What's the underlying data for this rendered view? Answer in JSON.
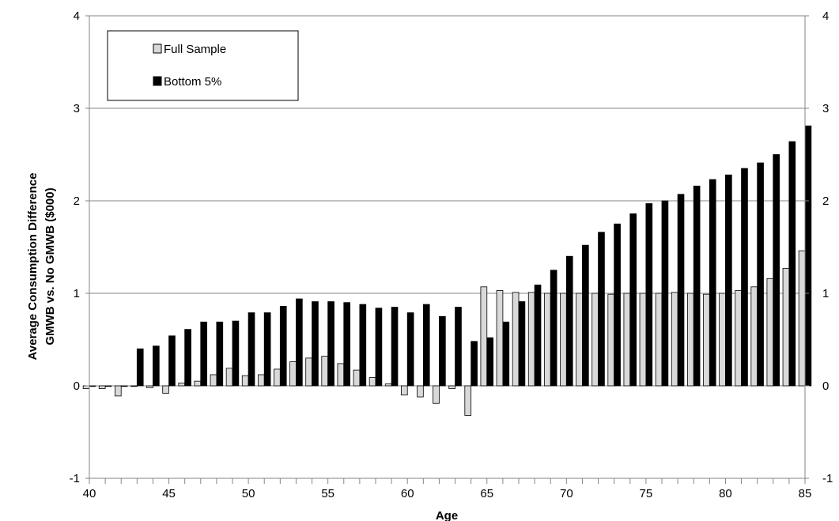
{
  "chart_data": {
    "type": "bar",
    "title": "",
    "xlabel": "Age",
    "ylabel_lines": [
      "Average Consumption  Difference",
      "GMWB vs. No GMWB  ($000)"
    ],
    "ylim": [
      -1,
      4
    ],
    "yticks": [
      -1,
      0,
      1,
      2,
      3,
      4
    ],
    "xlim": [
      40,
      85
    ],
    "xticks": [
      40,
      45,
      50,
      55,
      60,
      65,
      70,
      75,
      80,
      85
    ],
    "categories": [
      40,
      41,
      42,
      43,
      44,
      45,
      46,
      47,
      48,
      49,
      50,
      51,
      52,
      53,
      54,
      55,
      56,
      57,
      58,
      59,
      60,
      61,
      62,
      63,
      64,
      65,
      66,
      67,
      68,
      69,
      70,
      71,
      72,
      73,
      74,
      75,
      76,
      77,
      78,
      79,
      80,
      81,
      82,
      83,
      84,
      85
    ],
    "legend_position": "top-left",
    "grid": "horizontal",
    "series": [
      {
        "name": "Full Sample",
        "color": "#d9d9d9",
        "values": [
          -0.03,
          -0.03,
          -0.11,
          0.0,
          -0.02,
          -0.08,
          0.03,
          0.05,
          0.12,
          0.19,
          0.11,
          0.12,
          0.18,
          0.26,
          0.3,
          0.32,
          0.24,
          0.17,
          0.09,
          0.02,
          -0.1,
          -0.12,
          -0.19,
          -0.03,
          -0.32,
          1.07,
          1.03,
          1.01,
          1.01,
          1.0,
          1.0,
          1.0,
          1.0,
          0.99,
          1.0,
          1.0,
          1.0,
          1.01,
          1.0,
          0.99,
          1.0,
          1.03,
          1.07,
          1.16,
          1.27,
          1.46
        ]
      },
      {
        "name": "Bottom 5%",
        "color": "#000000",
        "values": [
          0.0,
          0.0,
          0.0,
          0.4,
          0.43,
          0.54,
          0.61,
          0.69,
          0.69,
          0.7,
          0.79,
          0.79,
          0.86,
          0.94,
          0.91,
          0.91,
          0.9,
          0.88,
          0.84,
          0.85,
          0.79,
          0.88,
          0.75,
          0.85,
          0.48,
          0.52,
          0.69,
          0.91,
          1.09,
          1.25,
          1.4,
          1.52,
          1.66,
          1.75,
          1.86,
          1.97,
          2.0,
          2.07,
          2.16,
          2.23,
          2.28,
          2.35,
          2.41,
          2.5,
          2.64,
          2.81
        ]
      }
    ]
  }
}
